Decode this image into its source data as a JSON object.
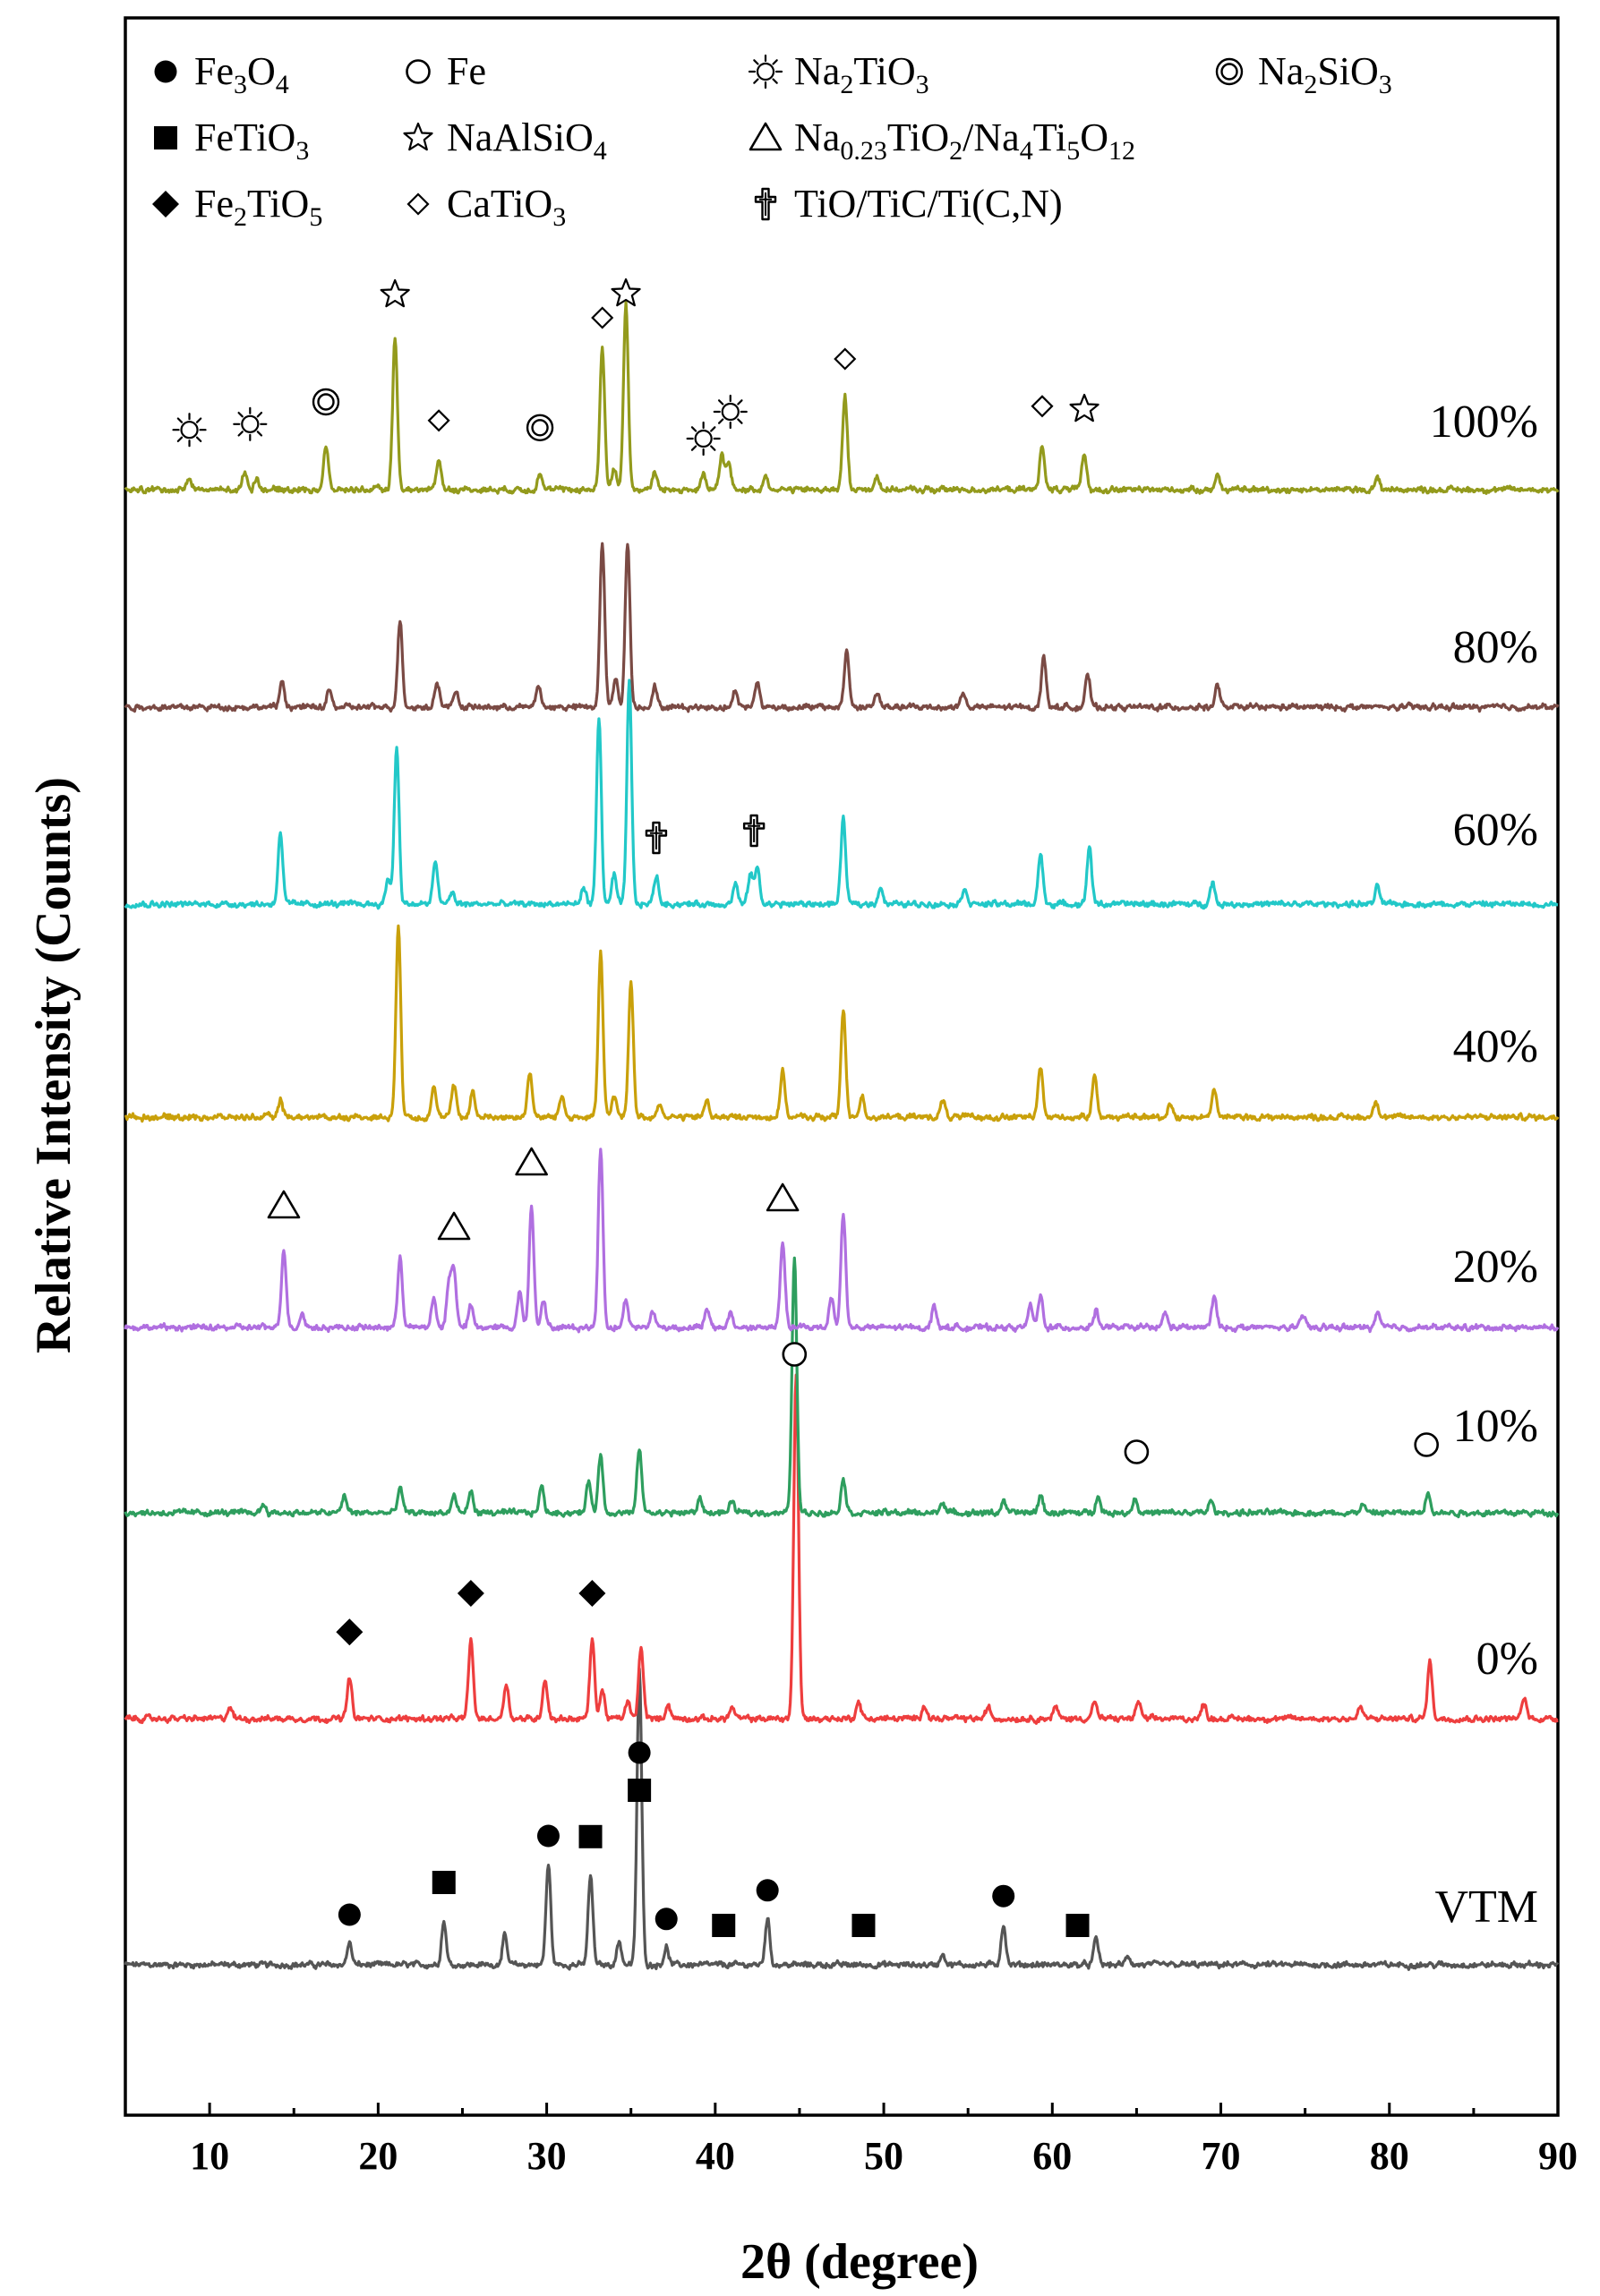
{
  "chart_data": {
    "type": "line",
    "title": "",
    "xlabel": "2θ (degree)",
    "ylabel": "Relative Intensity (Counts)",
    "xlim": [
      5,
      90
    ],
    "xticks": [
      10,
      20,
      30,
      40,
      50,
      60,
      70,
      80,
      90
    ],
    "legend_position": "top",
    "legend": [
      {
        "marker": "filled-circle",
        "parts": [
          [
            "Fe",
            ""
          ],
          [
            "3",
            "sub"
          ],
          [
            "O",
            ""
          ],
          [
            "4",
            "sub"
          ]
        ]
      },
      {
        "marker": "open-circle",
        "parts": [
          [
            "Fe",
            ""
          ]
        ]
      },
      {
        "marker": "sun",
        "parts": [
          [
            "Na",
            ""
          ],
          [
            "2",
            "sub"
          ],
          [
            "TiO",
            ""
          ],
          [
            "3",
            "sub"
          ]
        ]
      },
      {
        "marker": "double-circle",
        "parts": [
          [
            "Na",
            ""
          ],
          [
            "2",
            "sub"
          ],
          [
            "SiO",
            ""
          ],
          [
            "3",
            "sub"
          ]
        ]
      },
      {
        "marker": "filled-square",
        "parts": [
          [
            "FeTiO",
            ""
          ],
          [
            "3",
            "sub"
          ]
        ]
      },
      {
        "marker": "open-star",
        "parts": [
          [
            "NaAlSiO",
            ""
          ],
          [
            "4",
            "sub"
          ]
        ]
      },
      {
        "marker": "open-triangle",
        "parts": [
          [
            "Na",
            ""
          ],
          [
            "0.23",
            "sub"
          ],
          [
            "TiO",
            ""
          ],
          [
            "2",
            "sub"
          ],
          [
            "/Na",
            ""
          ],
          [
            "4",
            "sub"
          ],
          [
            "Ti",
            ""
          ],
          [
            "5",
            "sub"
          ],
          [
            "O",
            ""
          ],
          [
            "12",
            "sub"
          ]
        ]
      },
      {
        "marker": "filled-diamond",
        "parts": [
          [
            "Fe",
            ""
          ],
          [
            "2",
            "sub"
          ],
          [
            "TiO",
            ""
          ],
          [
            "5",
            "sub"
          ]
        ]
      },
      {
        "marker": "open-diamond",
        "parts": [
          [
            "CaTiO",
            ""
          ],
          [
            "3",
            "sub"
          ]
        ]
      },
      {
        "marker": "cross",
        "parts": [
          [
            "TiO/TiC/Ti(C,N)",
            ""
          ]
        ]
      }
    ],
    "colors": {
      "VTM": "#555555",
      "0%": "#ee3e3e",
      "10%": "#2e9e5e",
      "20%": "#b06fe0",
      "40%": "#c9a00a",
      "60%": "#22c8c8",
      "80%": "#7a4a44",
      "100%": "#939a1c"
    },
    "series": [
      {
        "name": "VTM",
        "peaks": [
          [
            18.3,
            15
          ],
          [
            23.9,
            30
          ],
          [
            27.5,
            20
          ],
          [
            30.1,
            70
          ],
          [
            32.6,
            62
          ],
          [
            34.3,
            16
          ],
          [
            35.5,
            205
          ],
          [
            37.1,
            12
          ],
          [
            43.1,
            32
          ],
          [
            53.5,
            8
          ],
          [
            57.1,
            28
          ],
          [
            62.6,
            18
          ],
          [
            64.5,
            6
          ]
        ]
      },
      {
        "name": "0%",
        "peaks": [
          [
            11.2,
            8
          ],
          [
            18.3,
            28
          ],
          [
            25.5,
            55
          ],
          [
            27.6,
            25
          ],
          [
            29.9,
            28
          ],
          [
            32.7,
            55
          ],
          [
            33.3,
            20
          ],
          [
            34.8,
            12
          ],
          [
            35.6,
            50
          ],
          [
            37.2,
            10
          ],
          [
            41.0,
            8
          ],
          [
            44.8,
            240
          ],
          [
            48.5,
            12
          ],
          [
            52.4,
            10
          ],
          [
            56.2,
            8
          ],
          [
            60.2,
            8
          ],
          [
            62.5,
            12
          ],
          [
            65.1,
            12
          ],
          [
            69.0,
            10
          ],
          [
            78.3,
            8
          ],
          [
            82.4,
            40
          ],
          [
            88.0,
            15
          ]
        ]
      },
      {
        "name": "10%",
        "peaks": [
          [
            13.2,
            6
          ],
          [
            18.0,
            12
          ],
          [
            21.3,
            18
          ],
          [
            24.5,
            12
          ],
          [
            25.5,
            15
          ],
          [
            29.7,
            18
          ],
          [
            32.5,
            22
          ],
          [
            33.2,
            40
          ],
          [
            35.5,
            45
          ],
          [
            39.1,
            10
          ],
          [
            41.0,
            8
          ],
          [
            44.7,
            180
          ],
          [
            47.6,
            24
          ],
          [
            53.5,
            8
          ],
          [
            57.1,
            8
          ],
          [
            59.3,
            12
          ],
          [
            62.7,
            12
          ],
          [
            64.9,
            10
          ],
          [
            69.4,
            8
          ],
          [
            78.4,
            6
          ],
          [
            82.3,
            15
          ]
        ]
      },
      {
        "name": "20%",
        "peaks": [
          [
            14.4,
            55
          ],
          [
            15.5,
            10
          ],
          [
            21.3,
            50
          ],
          [
            23.3,
            20
          ],
          [
            24.2,
            30
          ],
          [
            24.5,
            40
          ],
          [
            25.5,
            15
          ],
          [
            28.4,
            25
          ],
          [
            29.1,
            85
          ],
          [
            29.8,
            20
          ],
          [
            33.2,
            125
          ],
          [
            34.7,
            20
          ],
          [
            36.3,
            12
          ],
          [
            39.5,
            12
          ],
          [
            40.9,
            10
          ],
          [
            44.0,
            60
          ],
          [
            46.9,
            22
          ],
          [
            47.6,
            80
          ],
          [
            53.0,
            15
          ],
          [
            58.7,
            15
          ],
          [
            59.3,
            22
          ],
          [
            62.6,
            12
          ],
          [
            66.7,
            10
          ],
          [
            69.6,
            22
          ],
          [
            74.9,
            8
          ],
          [
            79.3,
            10
          ]
        ]
      },
      {
        "name": "40%",
        "peaks": [
          [
            14.2,
            12
          ],
          [
            21.2,
            135
          ],
          [
            23.3,
            22
          ],
          [
            24.5,
            22
          ],
          [
            25.6,
            18
          ],
          [
            29.0,
            32
          ],
          [
            30.9,
            15
          ],
          [
            33.2,
            115
          ],
          [
            34.0,
            15
          ],
          [
            35.0,
            95
          ],
          [
            36.7,
            10
          ],
          [
            39.5,
            12
          ],
          [
            44.0,
            32
          ],
          [
            47.6,
            75
          ],
          [
            48.7,
            15
          ],
          [
            53.5,
            12
          ],
          [
            59.3,
            35
          ],
          [
            62.5,
            30
          ],
          [
            67.0,
            10
          ],
          [
            69.6,
            20
          ],
          [
            79.2,
            12
          ]
        ]
      },
      {
        "name": "60%",
        "peaks": [
          [
            14.2,
            50
          ],
          [
            20.6,
            18
          ],
          [
            21.1,
            110
          ],
          [
            23.4,
            30
          ],
          [
            24.4,
            8
          ],
          [
            32.2,
            12
          ],
          [
            33.1,
            130
          ],
          [
            34.0,
            20
          ],
          [
            34.9,
            155
          ],
          [
            36.5,
            20
          ],
          [
            41.2,
            14
          ],
          [
            42.1,
            22
          ],
          [
            42.5,
            25
          ],
          [
            47.6,
            60
          ],
          [
            49.8,
            12
          ],
          [
            54.8,
            12
          ],
          [
            59.3,
            35
          ],
          [
            62.2,
            40
          ],
          [
            69.5,
            15
          ],
          [
            79.3,
            12
          ]
        ]
      },
      {
        "name": "80%",
        "peaks": [
          [
            14.3,
            18
          ],
          [
            17.1,
            12
          ],
          [
            21.3,
            60
          ],
          [
            23.5,
            18
          ],
          [
            24.6,
            12
          ],
          [
            29.5,
            15
          ],
          [
            33.3,
            115
          ],
          [
            34.1,
            20
          ],
          [
            34.8,
            115
          ],
          [
            36.4,
            15
          ],
          [
            41.2,
            12
          ],
          [
            42.5,
            18
          ],
          [
            47.8,
            40
          ],
          [
            49.6,
            10
          ],
          [
            54.7,
            10
          ],
          [
            59.5,
            35
          ],
          [
            62.1,
            22
          ],
          [
            69.8,
            15
          ]
        ]
      },
      {
        "name": "100%",
        "peaks": [
          [
            8.8,
            8
          ],
          [
            12.1,
            12
          ],
          [
            12.8,
            8
          ],
          [
            16.9,
            30
          ],
          [
            21.0,
            105
          ],
          [
            23.6,
            22
          ],
          [
            29.6,
            12
          ],
          [
            33.3,
            100
          ],
          [
            34.0,
            15
          ],
          [
            34.7,
            130
          ],
          [
            36.4,
            12
          ],
          [
            39.3,
            10
          ],
          [
            40.4,
            25
          ],
          [
            40.8,
            18
          ],
          [
            43.0,
            10
          ],
          [
            47.7,
            65
          ],
          [
            49.6,
            10
          ],
          [
            59.4,
            32
          ],
          [
            61.9,
            25
          ],
          [
            69.8,
            10
          ],
          [
            79.3,
            8
          ]
        ]
      }
    ],
    "series_labels": [
      "VTM",
      "0%",
      "10%",
      "20%",
      "40%",
      "60%",
      "80%",
      "100%"
    ],
    "phase_markers": [
      {
        "series": "VTM",
        "marker": "filled-circle",
        "x": [
          18.3,
          30.1,
          35.5,
          37.1,
          43.1,
          57.1
        ]
      },
      {
        "series": "VTM",
        "marker": "filled-square",
        "x": [
          23.9,
          32.6,
          35.5,
          40.5,
          48.8,
          61.5
        ]
      },
      {
        "series": "0%",
        "marker": "filled-diamond",
        "x": [
          18.3,
          25.5,
          32.7
        ]
      },
      {
        "series": "10%",
        "marker": "open-circle",
        "x": [
          44.7,
          65.0,
          82.2
        ]
      },
      {
        "series": "20%",
        "marker": "open-triangle",
        "x": [
          14.4,
          24.5,
          29.1,
          44.0
        ]
      },
      {
        "series": "60%",
        "marker": "cross",
        "x": [
          36.5,
          42.3
        ]
      },
      {
        "series": "100%",
        "marker": "sun",
        "x": [
          8.8,
          12.4,
          39.3,
          40.9
        ]
      },
      {
        "series": "100%",
        "marker": "double-circle",
        "x": [
          16.9,
          29.6
        ]
      },
      {
        "series": "100%",
        "marker": "open-star",
        "x": [
          21.0,
          34.7,
          61.9
        ]
      },
      {
        "series": "100%",
        "marker": "open-diamond",
        "x": [
          23.6,
          33.3,
          47.7,
          59.4
        ]
      }
    ]
  }
}
